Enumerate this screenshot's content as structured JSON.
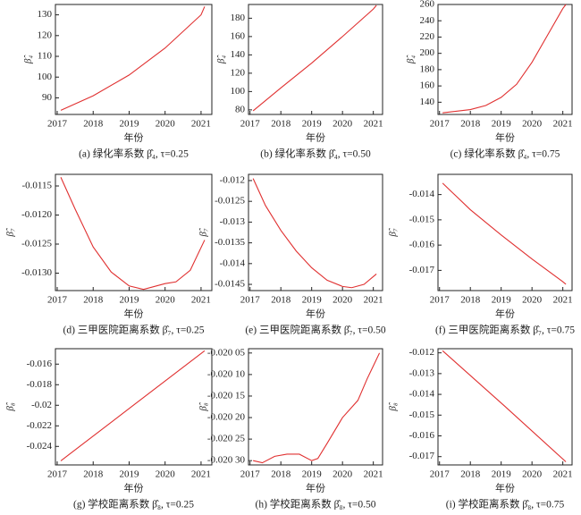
{
  "chart_data": [
    {
      "type": "line",
      "title": "(a) 绿化率系数 β̂₄, τ=0.25",
      "x_label": "年份",
      "y_label": "β̂₄",
      "color": "#e03030",
      "x": [
        2017.1,
        2018,
        2019,
        2020,
        2021,
        2021.1
      ],
      "values": [
        84,
        91,
        101,
        114,
        130,
        134
      ],
      "xlim": [
        2016.95,
        2021.3
      ],
      "xticks": [
        2017,
        2018,
        2019,
        2020,
        2021
      ],
      "ylim": [
        82,
        135
      ],
      "yticks": [
        90,
        100,
        110,
        120,
        130
      ]
    },
    {
      "type": "line",
      "title": "(b) 绿化率系数 β̂₄, τ=0.50",
      "x_label": "年份",
      "y_label": "β̂₄",
      "color": "#e03030",
      "x": [
        2017.1,
        2018,
        2019,
        2020,
        2021,
        2021.1
      ],
      "values": [
        79,
        104,
        131,
        160,
        190,
        194
      ],
      "xlim": [
        2016.95,
        2021.3
      ],
      "xticks": [
        2017,
        2018,
        2019,
        2020,
        2021
      ],
      "ylim": [
        75,
        195
      ],
      "yticks": [
        80,
        100,
        120,
        140,
        160,
        180
      ]
    },
    {
      "type": "line",
      "title": "(c) 绿化率系数 β̂₄, τ=0.75",
      "x_label": "年份",
      "y_label": "β̂₄",
      "color": "#e03030",
      "x": [
        2017.1,
        2018,
        2018.5,
        2019,
        2019.5,
        2020,
        2020.5,
        2021,
        2021.1
      ],
      "values": [
        127,
        131,
        136,
        146,
        162,
        189,
        222,
        255,
        260
      ],
      "xlim": [
        2016.95,
        2021.3
      ],
      "xticks": [
        2017,
        2018,
        2019,
        2020,
        2021
      ],
      "ylim": [
        125,
        260
      ],
      "yticks": [
        140,
        160,
        180,
        200,
        220,
        240,
        260
      ]
    },
    {
      "type": "line",
      "title": "(d) 三甲医院距离系数 β̂₇, τ=0.25",
      "x_label": "年份",
      "y_label": "β̂₇",
      "color": "#e03030",
      "x": [
        2017.1,
        2017.5,
        2018,
        2018.5,
        2019,
        2019.4,
        2020,
        2020.3,
        2020.7,
        2021.1
      ],
      "values": [
        -0.01135,
        -0.0119,
        -0.01255,
        -0.01298,
        -0.01322,
        -0.01328,
        -0.01318,
        -0.01315,
        -0.01295,
        -0.01243
      ],
      "xlim": [
        2016.95,
        2021.3
      ],
      "xticks": [
        2017,
        2018,
        2019,
        2020,
        2021
      ],
      "ylim": [
        -0.0133,
        -0.0113
      ],
      "yticks": [
        {
          "value": -0.0115,
          "label": "-0.0115"
        },
        {
          "value": -0.012,
          "label": "-0.0120"
        },
        {
          "value": -0.0125,
          "label": "-0.0125"
        },
        {
          "value": -0.013,
          "label": "-0.0130"
        }
      ]
    },
    {
      "type": "line",
      "title": "(e) 三甲医院距离系数 β̂₇, τ=0.50",
      "x_label": "年份",
      "y_label": "β̂₇",
      "color": "#e03030",
      "x": [
        2017.1,
        2017.5,
        2018,
        2018.5,
        2019,
        2019.5,
        2020,
        2020.3,
        2020.7,
        2021.1
      ],
      "values": [
        -0.01195,
        -0.0126,
        -0.0132,
        -0.0137,
        -0.0141,
        -0.0144,
        -0.01455,
        -0.01458,
        -0.0145,
        -0.01425
      ],
      "xlim": [
        2016.95,
        2021.3
      ],
      "xticks": [
        2017,
        2018,
        2019,
        2020,
        2021
      ],
      "ylim": [
        -0.01465,
        -0.01185
      ],
      "yticks": [
        -0.012,
        -0.0125,
        -0.013,
        -0.0135,
        -0.014,
        -0.0145
      ]
    },
    {
      "type": "line",
      "title": "(f) 三甲医院距离系数 β̂₇, τ=0.75",
      "x_label": "年份",
      "y_label": "β̂₇",
      "color": "#e03030",
      "x": [
        2017.1,
        2018,
        2019,
        2020,
        2021,
        2021.1
      ],
      "values": [
        -0.01355,
        -0.0146,
        -0.0156,
        -0.01655,
        -0.01745,
        -0.01755
      ],
      "xlim": [
        2016.95,
        2021.3
      ],
      "xticks": [
        2017,
        2018,
        2019,
        2020,
        2021
      ],
      "ylim": [
        -0.0178,
        -0.0132
      ],
      "yticks": [
        -0.014,
        -0.015,
        -0.016,
        -0.017
      ]
    },
    {
      "type": "line",
      "title": "(g) 学校距离系数 β̂₈, τ=0.25",
      "x_label": "年份",
      "y_label": "β̂₈",
      "color": "#e03030",
      "x": [
        2017.1,
        2019.1,
        2021.1
      ],
      "values": [
        -0.0254,
        -0.02005,
        -0.0147
      ],
      "xlim": [
        2016.95,
        2021.3
      ],
      "xticks": [
        2017,
        2018,
        2019,
        2020,
        2021
      ],
      "ylim": [
        -0.0258,
        -0.0145
      ],
      "yticks": [
        -0.016,
        -0.018,
        -0.02,
        -0.022,
        -0.024
      ]
    },
    {
      "type": "line",
      "title": "(h) 学校距离系数 β̂₈, τ=0.50",
      "x_label": "年份",
      "y_label": "β̂₈",
      "color": "#e03030",
      "x": [
        2017.1,
        2017.4,
        2017.8,
        2018.2,
        2018.6,
        2019,
        2019.2,
        2019.5,
        2020,
        2020.5,
        2020.8,
        2021,
        2021.2
      ],
      "values": [
        -0.0203,
        -0.020305,
        -0.02029,
        -0.020285,
        -0.020285,
        -0.0203,
        -0.020295,
        -0.02026,
        -0.0202,
        -0.02016,
        -0.02011,
        -0.02008,
        -0.02005
      ],
      "xlim": [
        2016.95,
        2021.3
      ],
      "xticks": [
        2017,
        2018,
        2019,
        2020,
        2021
      ],
      "ylim": [
        -0.02031,
        -0.02004
      ],
      "yticks": [
        {
          "value": -0.02005,
          "label": "-0.020 05"
        },
        {
          "value": -0.0201,
          "label": "-0.020 10"
        },
        {
          "value": -0.02015,
          "label": "-0.020 15"
        },
        {
          "value": -0.0202,
          "label": "-0.020 20"
        },
        {
          "value": -0.02025,
          "label": "-0.020 25"
        },
        {
          "value": -0.0203,
          "label": "-0.020 30"
        }
      ]
    },
    {
      "type": "line",
      "title": "(i) 学校距离系数 β̂₈, τ=0.75",
      "x_label": "年份",
      "y_label": "β̂₈",
      "color": "#e03030",
      "x": [
        2017.1,
        2019.1,
        2021.1
      ],
      "values": [
        -0.0119,
        -0.01455,
        -0.01725
      ],
      "xlim": [
        2016.95,
        2021.3
      ],
      "xticks": [
        2017,
        2018,
        2019,
        2020,
        2021
      ],
      "ylim": [
        -0.0174,
        -0.0118
      ],
      "yticks": [
        -0.012,
        -0.013,
        -0.014,
        -0.015,
        -0.016,
        -0.017
      ]
    }
  ]
}
